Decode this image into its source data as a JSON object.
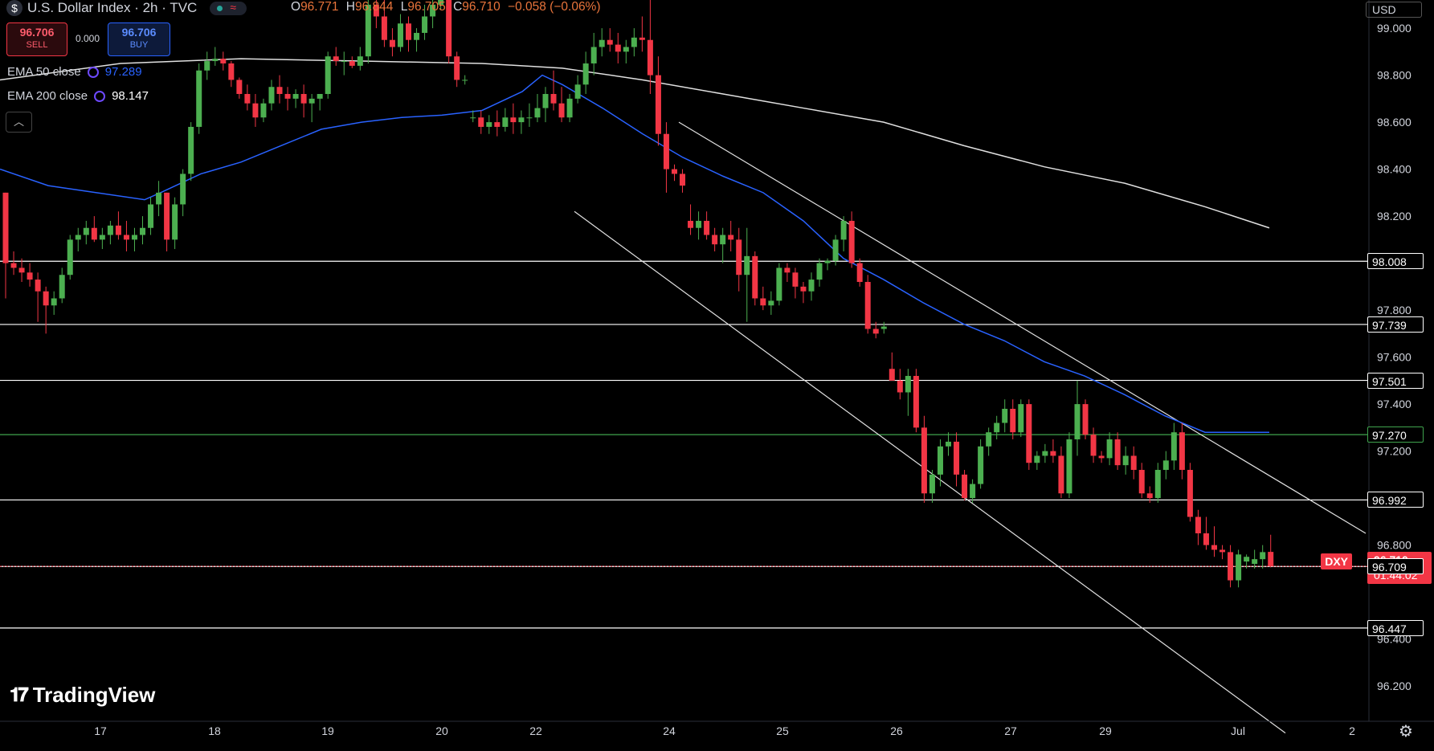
{
  "header": {
    "title": "U.S. Dollar Index · 2h · TVC",
    "ohlc": {
      "o_label": "O",
      "o": "96.771",
      "h_label": "H",
      "h": "96.844",
      "l_label": "L",
      "l": "96.705",
      "c_label": "C",
      "c": "96.710",
      "change": "−0.058 (−0.06%)"
    },
    "currency": "USD"
  },
  "trade": {
    "sell_price": "96.706",
    "sell_label": "SELL",
    "spread": "0.000",
    "buy_price": "96.706",
    "buy_label": "BUY"
  },
  "indicators": [
    {
      "label": "EMA 50 close",
      "value": "97.289",
      "color": "#2962ff"
    },
    {
      "label": "EMA 200 close",
      "value": "98.147",
      "color": "#ffffff"
    }
  ],
  "collapse_icon": "chevron-up-icon",
  "branding": "TradingView",
  "symbol_tag": "DXY",
  "price_tag": {
    "price": "96.710",
    "countdown": "01:44:02"
  },
  "colors": {
    "up": "#4caf50",
    "down": "#f23645",
    "ema50": "#2962ff",
    "ema200": "#e0e0e0",
    "sell_bg": "#2b0a0d",
    "buy_bg": "#0d1a3a"
  },
  "chart_data": {
    "type": "candlestick",
    "symbol": "DXY",
    "x_ticks": [
      "17",
      "18",
      "19",
      "20",
      "22",
      "24",
      "25",
      "26",
      "27",
      "29",
      "Jul",
      "2"
    ],
    "y_ticks": [
      "99.000",
      "98.800",
      "98.600",
      "98.400",
      "98.200",
      "97.800",
      "97.600",
      "97.400",
      "97.200",
      "96.800",
      "96.400",
      "96.200"
    ],
    "ylim": [
      96.05,
      99.12
    ],
    "horizontal_levels": [
      {
        "value": 98.008,
        "label": "98.008",
        "color": "#ffffff"
      },
      {
        "value": 97.739,
        "label": "97.739",
        "color": "#ffffff"
      },
      {
        "value": 97.501,
        "label": "97.501",
        "color": "#ffffff"
      },
      {
        "value": 97.27,
        "label": "97.270",
        "color": "#3fa34d"
      },
      {
        "value": 96.992,
        "label": "96.992",
        "color": "#ffffff"
      },
      {
        "value": 96.709,
        "label": "96.709",
        "color": "#ffffff"
      },
      {
        "value": 96.447,
        "label": "96.447",
        "color": "#ffffff"
      }
    ],
    "current_price": 96.71,
    "candles": [
      [
        98.3,
        98.3,
        97.85,
        98.0
      ],
      [
        98.0,
        98.05,
        97.95,
        97.98
      ],
      [
        97.98,
        98.02,
        97.92,
        97.96
      ],
      [
        97.96,
        98.0,
        97.9,
        97.93
      ],
      [
        97.93,
        97.96,
        97.75,
        97.88
      ],
      [
        97.88,
        97.9,
        97.7,
        97.82
      ],
      [
        97.82,
        97.88,
        97.78,
        97.85
      ],
      [
        97.85,
        97.98,
        97.83,
        97.95
      ],
      [
        97.95,
        98.12,
        97.93,
        98.1
      ],
      [
        98.1,
        98.15,
        98.05,
        98.12
      ],
      [
        98.12,
        98.18,
        98.08,
        98.15
      ],
      [
        98.15,
        98.2,
        98.09,
        98.1
      ],
      [
        98.1,
        98.15,
        98.06,
        98.12
      ],
      [
        98.12,
        98.18,
        98.08,
        98.16
      ],
      [
        98.16,
        98.22,
        98.1,
        98.12
      ],
      [
        98.12,
        98.18,
        98.05,
        98.1
      ],
      [
        98.1,
        98.15,
        98.05,
        98.12
      ],
      [
        98.12,
        98.2,
        98.08,
        98.15
      ],
      [
        98.15,
        98.28,
        98.12,
        98.25
      ],
      [
        98.25,
        98.35,
        98.2,
        98.3
      ],
      [
        98.3,
        98.3,
        98.05,
        98.1
      ],
      [
        98.1,
        98.28,
        98.06,
        98.25
      ],
      [
        98.25,
        98.4,
        98.2,
        98.38
      ],
      [
        98.38,
        98.6,
        98.35,
        98.58
      ],
      [
        98.58,
        98.85,
        98.55,
        98.82
      ],
      [
        98.82,
        98.9,
        98.78,
        98.86
      ],
      [
        98.86,
        98.92,
        98.84,
        98.87
      ],
      [
        98.87,
        98.9,
        98.82,
        98.85
      ],
      [
        98.85,
        98.86,
        98.75,
        98.78
      ],
      [
        98.78,
        98.79,
        98.7,
        98.72
      ],
      [
        98.72,
        98.76,
        98.65,
        98.68
      ],
      [
        98.68,
        98.72,
        98.58,
        98.62
      ],
      [
        98.62,
        98.7,
        98.6,
        98.68
      ],
      [
        98.68,
        98.78,
        98.65,
        98.75
      ],
      [
        98.75,
        98.8,
        98.68,
        98.72
      ],
      [
        98.72,
        98.75,
        98.65,
        98.7
      ],
      [
        98.7,
        98.74,
        98.66,
        98.72
      ],
      [
        98.72,
        98.76,
        98.62,
        98.68
      ],
      [
        98.68,
        98.72,
        98.6,
        98.7
      ],
      [
        98.7,
        98.72,
        98.65,
        98.72
      ],
      [
        98.72,
        98.9,
        98.7,
        98.88
      ],
      [
        98.88,
        98.92,
        98.84,
        98.86
      ],
      [
        98.86,
        98.9,
        98.8,
        98.86
      ],
      [
        98.86,
        98.88,
        98.83,
        98.84
      ],
      [
        98.84,
        98.92,
        98.82,
        98.88
      ],
      [
        98.88,
        99.2,
        98.85,
        99.1
      ],
      [
        99.1,
        99.2,
        99.0,
        99.05
      ],
      [
        99.05,
        99.15,
        98.92,
        98.95
      ],
      [
        98.95,
        99.0,
        98.88,
        98.92
      ],
      [
        98.92,
        99.06,
        98.9,
        99.02
      ],
      [
        99.02,
        99.05,
        98.9,
        98.95
      ],
      [
        98.95,
        99.0,
        98.9,
        98.98
      ],
      [
        98.98,
        99.1,
        98.95,
        99.05
      ],
      [
        99.05,
        99.12,
        99.0,
        99.1
      ],
      [
        99.1,
        99.3,
        99.08,
        99.25
      ],
      [
        99.25,
        99.28,
        98.85,
        98.88
      ],
      [
        98.88,
        98.9,
        98.75,
        98.78
      ],
      [
        98.78,
        98.8,
        98.76,
        98.78
      ],
      [
        98.62,
        98.65,
        98.6,
        98.62
      ],
      [
        98.62,
        98.65,
        98.55,
        98.58
      ],
      [
        98.58,
        98.63,
        98.55,
        98.6
      ],
      [
        98.6,
        98.65,
        98.54,
        98.58
      ],
      [
        98.58,
        98.66,
        98.56,
        98.62
      ],
      [
        98.62,
        98.68,
        98.55,
        98.6
      ],
      [
        98.6,
        98.65,
        98.55,
        98.62
      ],
      [
        98.62,
        98.68,
        98.58,
        98.62
      ],
      [
        98.62,
        98.72,
        98.6,
        98.66
      ],
      [
        98.66,
        98.75,
        98.6,
        98.72
      ],
      [
        98.72,
        98.82,
        98.65,
        98.68
      ],
      [
        98.68,
        98.75,
        98.6,
        98.62
      ],
      [
        98.62,
        98.72,
        98.6,
        98.7
      ],
      [
        98.7,
        98.8,
        98.68,
        98.76
      ],
      [
        98.76,
        98.9,
        98.72,
        98.85
      ],
      [
        98.85,
        98.98,
        98.8,
        98.92
      ],
      [
        98.92,
        99.0,
        98.88,
        98.95
      ],
      [
        98.95,
        99.0,
        98.9,
        98.93
      ],
      [
        98.93,
        98.98,
        98.85,
        98.9
      ],
      [
        98.9,
        98.95,
        98.85,
        98.92
      ],
      [
        98.92,
        99.0,
        98.88,
        98.96
      ],
      [
        98.96,
        99.05,
        98.9,
        98.95
      ],
      [
        98.95,
        99.6,
        98.72,
        98.8
      ],
      [
        98.8,
        98.88,
        98.5,
        98.55
      ],
      [
        98.55,
        98.6,
        98.3,
        98.4
      ],
      [
        98.4,
        98.42,
        98.35,
        98.38
      ],
      [
        98.38,
        98.4,
        98.3,
        98.33
      ],
      [
        98.18,
        98.25,
        98.12,
        98.15
      ],
      [
        98.15,
        98.22,
        98.1,
        98.18
      ],
      [
        98.18,
        98.22,
        98.1,
        98.12
      ],
      [
        98.12,
        98.15,
        98.05,
        98.08
      ],
      [
        98.08,
        98.15,
        98.0,
        98.12
      ],
      [
        98.12,
        98.18,
        98.05,
        98.1
      ],
      [
        98.1,
        98.15,
        97.88,
        97.95
      ],
      [
        97.95,
        98.15,
        97.75,
        98.03
      ],
      [
        98.03,
        98.05,
        97.82,
        97.85
      ],
      [
        97.85,
        97.9,
        97.8,
        97.82
      ],
      [
        97.82,
        97.88,
        97.78,
        97.84
      ],
      [
        97.84,
        98.0,
        97.82,
        97.98
      ],
      [
        97.98,
        98.0,
        97.92,
        97.96
      ],
      [
        97.96,
        97.98,
        97.85,
        97.9
      ],
      [
        97.9,
        97.92,
        97.83,
        97.88
      ],
      [
        97.88,
        97.96,
        97.84,
        97.93
      ],
      [
        97.93,
        98.02,
        97.9,
        98.0
      ],
      [
        98.0,
        98.02,
        97.97,
        98.01
      ],
      [
        98.01,
        98.12,
        97.99,
        98.1
      ],
      [
        98.1,
        98.2,
        98.05,
        98.18
      ],
      [
        98.18,
        98.22,
        97.98,
        98.0
      ],
      [
        98.0,
        98.02,
        97.9,
        97.92
      ],
      [
        97.92,
        97.95,
        97.7,
        97.72
      ],
      [
        97.72,
        97.75,
        97.68,
        97.7
      ],
      [
        97.72,
        97.75,
        97.7,
        97.73
      ],
      [
        97.55,
        97.62,
        97.5,
        97.5
      ],
      [
        97.5,
        97.55,
        97.42,
        97.45
      ],
      [
        97.45,
        97.55,
        97.35,
        97.52
      ],
      [
        97.52,
        97.55,
        97.28,
        97.3
      ],
      [
        97.3,
        97.35,
        96.98,
        97.02
      ],
      [
        97.02,
        97.12,
        96.98,
        97.1
      ],
      [
        97.1,
        97.25,
        97.05,
        97.22
      ],
      [
        97.22,
        97.28,
        97.18,
        97.24
      ],
      [
        97.24,
        97.28,
        97.05,
        97.1
      ],
      [
        97.1,
        97.12,
        96.99,
        97.0
      ],
      [
        97.0,
        97.08,
        96.98,
        97.06
      ],
      [
        97.06,
        97.25,
        97.04,
        97.22
      ],
      [
        97.22,
        97.3,
        97.18,
        97.28
      ],
      [
        97.28,
        97.35,
        97.25,
        97.32
      ],
      [
        97.32,
        97.42,
        97.28,
        97.38
      ],
      [
        97.38,
        97.42,
        97.25,
        97.28
      ],
      [
        97.28,
        97.42,
        97.26,
        97.4
      ],
      [
        97.4,
        97.42,
        97.12,
        97.15
      ],
      [
        97.15,
        97.2,
        97.12,
        97.18
      ],
      [
        97.18,
        97.23,
        97.15,
        97.2
      ],
      [
        97.2,
        97.25,
        97.15,
        97.18
      ],
      [
        97.18,
        97.22,
        97.0,
        97.02
      ],
      [
        97.02,
        97.28,
        97.0,
        97.25
      ],
      [
        97.25,
        97.5,
        97.18,
        97.4
      ],
      [
        97.4,
        97.42,
        97.25,
        97.27
      ],
      [
        97.27,
        97.3,
        97.15,
        97.18
      ],
      [
        97.18,
        97.2,
        97.15,
        97.17
      ],
      [
        97.17,
        97.28,
        97.14,
        97.25
      ],
      [
        97.25,
        97.28,
        97.12,
        97.14
      ],
      [
        97.14,
        97.22,
        97.1,
        97.18
      ],
      [
        97.18,
        97.22,
        97.08,
        97.12
      ],
      [
        97.12,
        97.15,
        97.0,
        97.02
      ],
      [
        97.02,
        97.05,
        96.98,
        97.0
      ],
      [
        97.0,
        97.15,
        96.98,
        97.12
      ],
      [
        97.12,
        97.2,
        97.08,
        97.16
      ],
      [
        97.16,
        97.32,
        97.12,
        97.28
      ],
      [
        97.28,
        97.32,
        97.08,
        97.12
      ],
      [
        97.12,
        97.15,
        96.9,
        96.92
      ],
      [
        96.92,
        96.95,
        96.8,
        96.85
      ],
      [
        96.85,
        96.92,
        96.78,
        96.8
      ],
      [
        96.8,
        96.88,
        96.75,
        96.78
      ],
      [
        96.78,
        96.8,
        96.74,
        96.77
      ],
      [
        96.77,
        96.8,
        96.62,
        96.65
      ],
      [
        96.65,
        96.78,
        96.62,
        96.76
      ],
      [
        96.73,
        96.76,
        96.7,
        96.75
      ],
      [
        96.72,
        96.78,
        96.7,
        96.74
      ],
      [
        96.74,
        96.8,
        96.7,
        96.77
      ],
      [
        96.771,
        96.844,
        96.705,
        96.71
      ]
    ],
    "ema50": [
      [
        0,
        98.4
      ],
      [
        60,
        98.33
      ],
      [
        120,
        98.3
      ],
      [
        180,
        98.27
      ],
      [
        200,
        98.3
      ],
      [
        250,
        98.38
      ],
      [
        300,
        98.43
      ],
      [
        350,
        98.5
      ],
      [
        400,
        98.57
      ],
      [
        450,
        98.6
      ],
      [
        500,
        98.62
      ],
      [
        550,
        98.63
      ],
      [
        600,
        98.65
      ],
      [
        650,
        98.73
      ],
      [
        675,
        98.8
      ],
      [
        700,
        98.76
      ],
      [
        750,
        98.66
      ],
      [
        800,
        98.55
      ],
      [
        850,
        98.45
      ],
      [
        900,
        98.37
      ],
      [
        950,
        98.3
      ],
      [
        1000,
        98.18
      ],
      [
        1050,
        98.02
      ],
      [
        1100,
        97.93
      ],
      [
        1150,
        97.83
      ],
      [
        1200,
        97.74
      ],
      [
        1250,
        97.67
      ],
      [
        1300,
        97.58
      ],
      [
        1350,
        97.52
      ],
      [
        1400,
        97.44
      ],
      [
        1450,
        97.35
      ],
      [
        1500,
        97.28
      ],
      [
        1580,
        97.28
      ]
    ],
    "ema200": [
      [
        0,
        98.78
      ],
      [
        150,
        98.85
      ],
      [
        300,
        98.87
      ],
      [
        450,
        98.86
      ],
      [
        600,
        98.85
      ],
      [
        700,
        98.83
      ],
      [
        800,
        98.78
      ],
      [
        900,
        98.72
      ],
      [
        1000,
        98.66
      ],
      [
        1100,
        98.6
      ],
      [
        1200,
        98.5
      ],
      [
        1300,
        98.41
      ],
      [
        1400,
        98.34
      ],
      [
        1500,
        98.24
      ],
      [
        1580,
        98.15
      ]
    ],
    "trendlines": [
      {
        "from": [
          715,
          98.22
        ],
        "to": [
          1600,
          96.0
        ]
      },
      {
        "from": [
          845,
          98.6
        ],
        "to": [
          1700,
          96.85
        ]
      }
    ]
  }
}
